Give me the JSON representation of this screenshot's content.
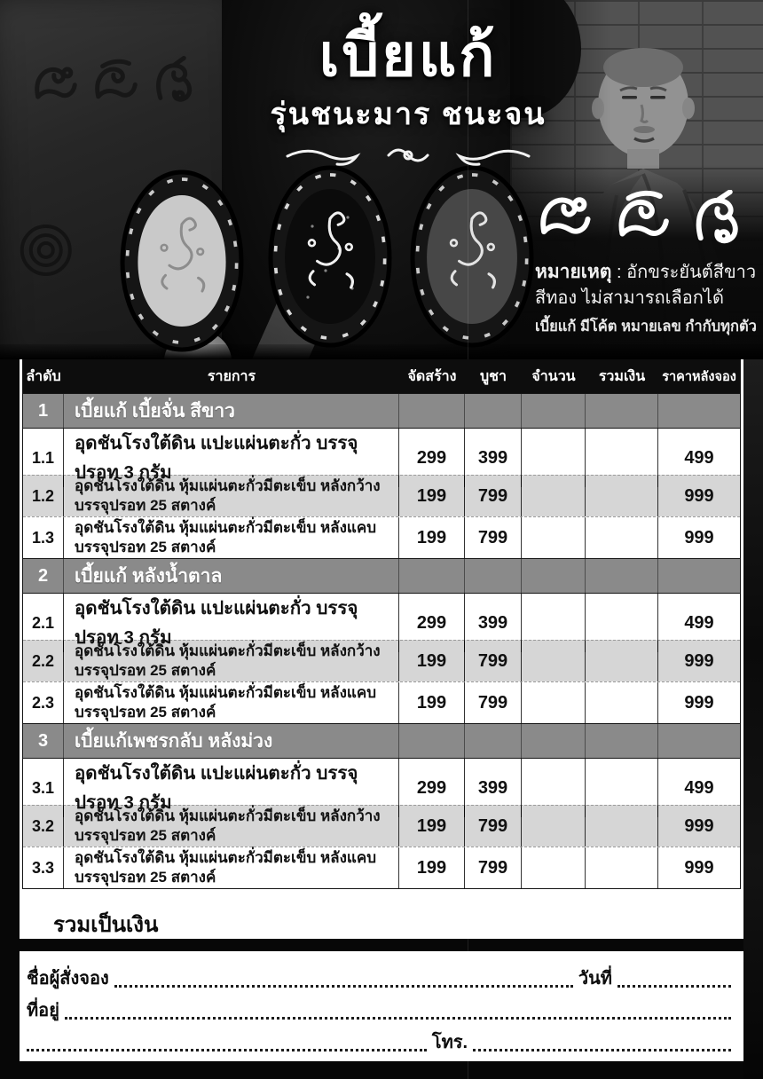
{
  "header": {
    "title": "เบี้ยแก้",
    "subtitle": "รุ่นชนะมาร ชนะจน",
    "note_label": "หมายเหตุ",
    "note_line1_rest": ": อักขระยันต์สีขาว",
    "note_line2": "สีทอง ไม่สามารถเลือกได้",
    "note_line3": "เบี้ยแก้ มีโค้ต หมายเลข กำกับทุกตัว"
  },
  "table": {
    "columns": [
      "ลำดับ",
      "รายการ",
      "จัดสร้าง",
      "บูชา",
      "จำนวน",
      "รวมเงิน",
      "ราคาหลังจอง"
    ],
    "total_label": "รวมเป็นเงิน",
    "sections": [
      {
        "no": "1",
        "title": "เบี้ยแก้ เบี้ยจั่น สีขาว",
        "rows": [
          {
            "no": "1.1",
            "desc": "อุดชันโรงใต้ดิน แปะแผ่นตะกั่ว บรรจุปรอท 3 กรัม",
            "desc2": "",
            "made": "299",
            "price": "399",
            "qty": "",
            "amount": "",
            "late": "499",
            "shaded": false
          },
          {
            "no": "1.2",
            "desc": "อุดชันโรงใต้ดิน หุ้มแผ่นตะกั่วมีตะเข็บ หลังกว้าง",
            "desc2": "บรรจุปรอท 25 สตางค์",
            "made": "199",
            "price": "799",
            "qty": "",
            "amount": "",
            "late": "999",
            "shaded": true
          },
          {
            "no": "1.3",
            "desc": "อุดชันโรงใต้ดิน หุ้มแผ่นตะกั่วมีตะเข็บ หลังแคบ",
            "desc2": "บรรจุปรอท 25 สตางค์",
            "made": "199",
            "price": "799",
            "qty": "",
            "amount": "",
            "late": "999",
            "shaded": false
          }
        ]
      },
      {
        "no": "2",
        "title": "เบี้ยแก้ หลังน้ำตาล",
        "rows": [
          {
            "no": "2.1",
            "desc": "อุดชันโรงใต้ดิน แปะแผ่นตะกั่ว บรรจุปรอท 3 กรัม",
            "desc2": "",
            "made": "299",
            "price": "399",
            "qty": "",
            "amount": "",
            "late": "499",
            "shaded": false
          },
          {
            "no": "2.2",
            "desc": "อุดชันโรงใต้ดิน หุ้มแผ่นตะกั่วมีตะเข็บ หลังกว้าง",
            "desc2": "บรรจุปรอท 25 สตางค์",
            "made": "199",
            "price": "799",
            "qty": "",
            "amount": "",
            "late": "999",
            "shaded": true
          },
          {
            "no": "2.3",
            "desc": "อุดชันโรงใต้ดิน หุ้มแผ่นตะกั่วมีตะเข็บ หลังแคบ",
            "desc2": "บรรจุปรอท 25 สตางค์",
            "made": "199",
            "price": "799",
            "qty": "",
            "amount": "",
            "late": "999",
            "shaded": false
          }
        ]
      },
      {
        "no": "3",
        "title": "เบี้ยแก้เพชรกลับ หลังม่วง",
        "rows": [
          {
            "no": "3.1",
            "desc": "อุดชันโรงใต้ดิน แปะแผ่นตะกั่ว บรรจุปรอท 3 กรัม",
            "desc2": "",
            "made": "299",
            "price": "399",
            "qty": "",
            "amount": "",
            "late": "499",
            "shaded": false
          },
          {
            "no": "3.2",
            "desc": "อุดชันโรงใต้ดิน หุ้มแผ่นตะกั่วมีตะเข็บ หลังกว้าง",
            "desc2": "บรรจุปรอท 25 สตางค์",
            "made": "199",
            "price": "799",
            "qty": "",
            "amount": "",
            "late": "999",
            "shaded": true
          },
          {
            "no": "3.3",
            "desc": "อุดชันโรงใต้ดิน หุ้มแผ่นตะกั่วมีตะเข็บ หลังแคบ",
            "desc2": "บรรจุปรอท 25  สตางค์",
            "made": "199",
            "price": "799",
            "qty": "",
            "amount": "",
            "late": "999",
            "shaded": false
          }
        ]
      }
    ]
  },
  "form": {
    "name_label": "ชื่อผู้สั่งจอง",
    "date_label": "วันที่",
    "address_label": "ที่อยู่",
    "phone_label": "โทร."
  },
  "colors": {
    "page_bg": "#070707",
    "table_header_bg": "#0d0d0d",
    "section_row_bg": "#8a8a8a",
    "shaded_row_bg": "#d6d6d6",
    "text": "#111111",
    "white": "#ffffff"
  }
}
